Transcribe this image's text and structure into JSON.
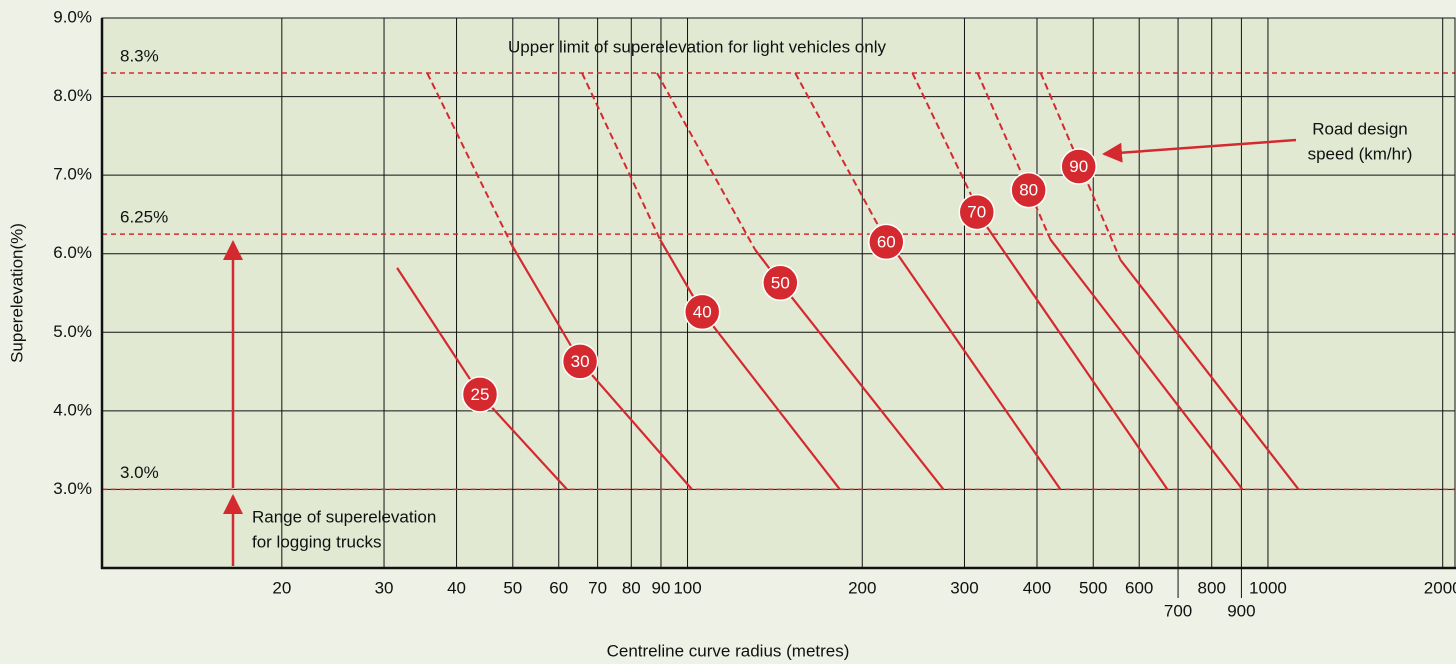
{
  "chart_data": {
    "type": "line",
    "x_label": "Centreline curve radius (metres)",
    "y_label": "Superelevation(%)",
    "log_x": true,
    "grid": true,
    "xlim": [
      9.8,
      2100
    ],
    "xticks": [
      20,
      30,
      40,
      50,
      60,
      70,
      80,
      90,
      100,
      200,
      300,
      400,
      500,
      600,
      700,
      800,
      900,
      1000,
      2000
    ],
    "ylim": [
      2,
      9
    ],
    "yticks": [
      {
        "value": 3,
        "label": "3.0%"
      },
      {
        "value": 4,
        "label": "4.0%"
      },
      {
        "value": 5,
        "label": "5.0%"
      },
      {
        "value": 6,
        "label": "6.0%"
      },
      {
        "value": 7,
        "label": "7.0%"
      },
      {
        "value": 8,
        "label": "8.0%"
      },
      {
        "value": 9,
        "label": "9.0%"
      }
    ],
    "reference_lines": [
      {
        "value": 8.3,
        "label": "8.3%"
      },
      {
        "value": 6.25,
        "label": "6.25%"
      },
      {
        "value": 3.0,
        "label": "3.0%"
      }
    ],
    "color": "#d42a2f",
    "annotations": {
      "upper_limit": "Upper limit of superelevation for light vehicles only",
      "design_speed": [
        "Road design",
        "speed (km/hr)"
      ],
      "logging_trucks": [
        "Range of superelevation",
        "for logging trucks"
      ]
    },
    "series": [
      {
        "name": "25",
        "x": [
          31.6,
          43.9,
          62.0
        ],
        "values": [
          5.82,
          4.21,
          3.0
        ],
        "dashed_x": [],
        "dashed_values": [],
        "label_x": 43.9,
        "label_y": 4.21
      },
      {
        "name": "30",
        "x": [
          49.8,
          65.3,
          101.8
        ],
        "values": [
          6.11,
          4.63,
          3.0
        ],
        "dashed_x": [
          35.6,
          49.8
        ],
        "dashed_values": [
          8.3,
          6.11
        ],
        "label_x": 65.3,
        "label_y": 4.63
      },
      {
        "name": "40",
        "x": [
          89.7,
          106,
          183
        ],
        "values": [
          6.18,
          5.26,
          3.0
        ],
        "dashed_x": [
          65.8,
          89.7
        ],
        "dashed_values": [
          8.3,
          6.18
        ],
        "label_x": 106,
        "label_y": 5.26
      },
      {
        "name": "50",
        "x": [
          130.8,
          144.5,
          276
        ],
        "values": [
          6.05,
          5.63,
          3.0
        ],
        "dashed_x": [
          88.6,
          130.8
        ],
        "dashed_values": [
          8.3,
          6.05
        ],
        "label_x": 144.5,
        "label_y": 5.63
      },
      {
        "name": "60",
        "x": [
          214.8,
          439
        ],
        "values": [
          6.31,
          3.0
        ],
        "dashed_x": [
          153.3,
          214.8
        ],
        "dashed_values": [
          8.3,
          6.31
        ],
        "label_x": 220,
        "label_y": 6.15
      },
      {
        "name": "70",
        "x": [
          326,
          671
        ],
        "values": [
          6.37,
          3.0
        ],
        "dashed_x": [
          244,
          326
        ],
        "dashed_values": [
          8.3,
          6.37
        ],
        "label_x": 315,
        "label_y": 6.53
      },
      {
        "name": "80",
        "x": [
          422,
          904
        ],
        "values": [
          6.18,
          3.0
        ],
        "dashed_x": [
          316,
          422
        ],
        "dashed_values": [
          8.3,
          6.18
        ],
        "label_x": 387,
        "label_y": 6.81
      },
      {
        "name": "90",
        "x": [
          557,
          1129
        ],
        "values": [
          5.92,
          3.0
        ],
        "dashed_x": [
          406,
          557
        ],
        "dashed_values": [
          8.3,
          5.92
        ],
        "label_x": 472,
        "label_y": 7.11
      }
    ]
  }
}
